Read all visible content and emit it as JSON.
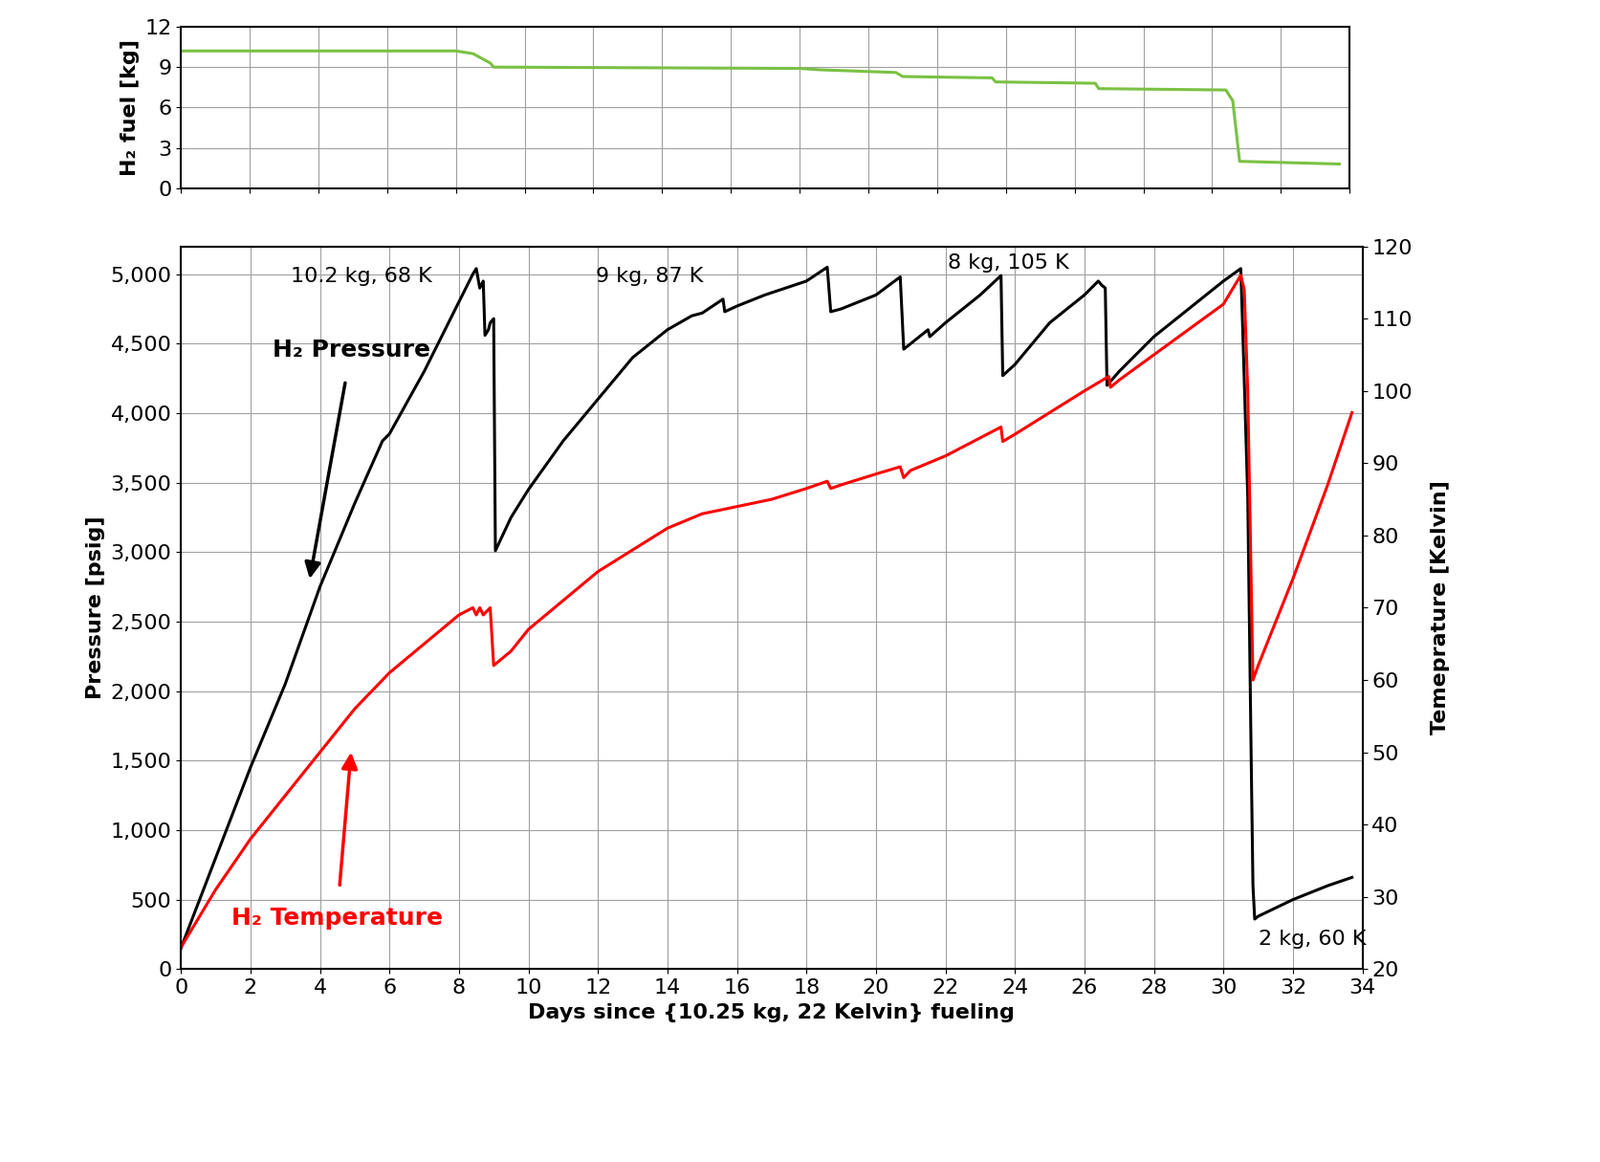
{
  "chart_data": [
    {
      "type": "line",
      "y_label": "H₂ fuel [kg]",
      "xlim": [
        0,
        34
      ],
      "xticks": [
        0,
        2,
        4,
        6,
        8,
        10,
        12,
        14,
        16,
        18,
        20,
        22,
        24,
        26,
        28,
        30,
        32,
        34
      ],
      "ylim": [
        0,
        12
      ],
      "yticks": [
        0,
        3,
        6,
        9,
        12
      ],
      "grid": true,
      "tick_labels": "y",
      "series": [
        {
          "color": "#7ac143",
          "x": [
            0,
            8,
            8.5,
            9,
            9.1,
            18,
            18.6,
            20.8,
            21,
            23.6,
            23.7,
            26.6,
            26.7,
            30.4,
            30.6,
            30.8,
            33.7
          ],
          "values": [
            10.2,
            10.2,
            10.0,
            9.3,
            9.0,
            8.9,
            8.8,
            8.6,
            8.3,
            8.2,
            7.9,
            7.8,
            7.4,
            7.3,
            6.5,
            2.0,
            1.8
          ]
        }
      ]
    },
    {
      "type": "line",
      "x_label": "Days since {10.25 kg, 22 Kelvin} fueling",
      "y_label": "Pressure [psig]",
      "y2_label": "Temeprature [Kelvin]",
      "xlim": [
        0,
        34
      ],
      "xticks": [
        0,
        2,
        4,
        6,
        8,
        10,
        12,
        14,
        16,
        18,
        20,
        22,
        24,
        26,
        28,
        30,
        32,
        34
      ],
      "ylim": [
        0,
        5200
      ],
      "yticks": [
        0,
        500,
        {
          "value": 1000,
          "label": "1,000"
        },
        {
          "value": 1500,
          "label": "1,500"
        },
        {
          "value": 2000,
          "label": "2,000"
        },
        {
          "value": 2500,
          "label": "2,500"
        },
        {
          "value": 3000,
          "label": "3,000"
        },
        {
          "value": 3500,
          "label": "3,500"
        },
        {
          "value": 4000,
          "label": "4,000"
        },
        {
          "value": 4500,
          "label": "4,500"
        },
        {
          "value": 5000,
          "label": "5,000"
        }
      ],
      "y2lim": [
        20,
        120
      ],
      "y2ticks": [
        20,
        30,
        40,
        50,
        60,
        70,
        80,
        90,
        100,
        110,
        120
      ],
      "grid": true,
      "annotations": [
        "10.2 kg, 68 K",
        "9 kg, 87 K",
        "8 kg, 105 K",
        "2 kg, 60 K"
      ],
      "series": [
        {
          "name": "H₂ Pressure",
          "color": "black",
          "x": [
            0,
            1,
            2,
            3,
            4,
            5,
            5.8,
            6,
            7,
            7.5,
            8,
            8.4,
            8.5,
            8.6,
            8.7,
            8.75,
            8.85,
            8.9,
            9.0,
            9.05,
            9.5,
            10,
            11,
            12,
            13,
            14,
            14.7,
            15,
            15.6,
            15.65,
            16,
            16.6,
            16.8,
            18,
            18.6,
            18.7,
            19,
            20,
            20.7,
            20.8,
            21,
            21.5,
            21.55,
            22,
            23,
            23.6,
            23.65,
            24,
            25,
            26,
            26.4,
            26.5,
            26.6,
            26.65,
            27,
            28,
            29,
            30,
            30.5,
            30.55,
            30.7,
            30.8,
            30.85,
            30.9,
            31,
            32,
            33,
            33.7
          ],
          "values": [
            150,
            800,
            1450,
            2050,
            2750,
            3350,
            3800,
            3850,
            4300,
            4550,
            4800,
            5000,
            5040,
            4900,
            4950,
            4560,
            4600,
            4650,
            4680,
            3010,
            3250,
            3450,
            3800,
            4100,
            4400,
            4600,
            4700,
            4720,
            4820,
            4730,
            4770,
            4830,
            4850,
            4950,
            5050,
            4730,
            4750,
            4850,
            4980,
            4460,
            4500,
            4600,
            4550,
            4650,
            4850,
            4990,
            4270,
            4350,
            4650,
            4850,
            4950,
            4920,
            4900,
            4200,
            4300,
            4550,
            4750,
            4950,
            5040,
            4650,
            3400,
            1500,
            600,
            360,
            380,
            500,
            600,
            660
          ]
        },
        {
          "name": "H₂ Temperature",
          "color": "red",
          "axis": "y2",
          "x": [
            0,
            1,
            2,
            3,
            4,
            5,
            6,
            7,
            8,
            8.4,
            8.5,
            8.6,
            8.7,
            8.9,
            9.0,
            9.5,
            10,
            11,
            12,
            13,
            14,
            15,
            16,
            17,
            18,
            18.6,
            18.7,
            19,
            20,
            20.7,
            20.8,
            21,
            21.5,
            22,
            23,
            23.6,
            23.65,
            24,
            25,
            26,
            26.7,
            26.75,
            27,
            28,
            29,
            30,
            30.5,
            30.6,
            30.7,
            30.85,
            31,
            32,
            33,
            33.7
          ],
          "values": [
            23,
            31,
            38,
            44,
            50,
            56,
            61,
            65,
            69,
            70,
            69,
            70,
            69,
            70,
            62,
            64,
            67,
            71,
            75,
            78,
            81,
            83,
            84,
            85,
            86.5,
            87.5,
            86.5,
            87,
            88.5,
            89.5,
            88,
            89,
            90,
            91,
            93.5,
            95,
            93,
            94,
            97,
            100,
            102,
            100.5,
            101.5,
            105,
            108.5,
            112,
            116,
            114,
            100,
            60,
            62,
            74,
            87,
            97
          ]
        }
      ]
    }
  ]
}
